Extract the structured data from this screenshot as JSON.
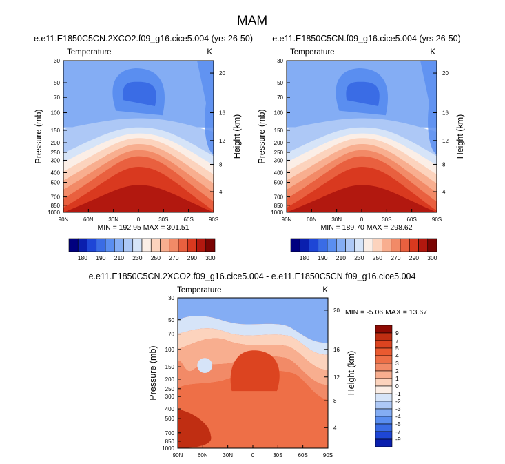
{
  "title": "MAM",
  "colors": {
    "abs_scale": [
      "#00007f",
      "#0a1fae",
      "#1e46d6",
      "#3a6ce5",
      "#5a8ef0",
      "#84adf4",
      "#adc8f6",
      "#d6e4f8",
      "#fbeee6",
      "#fcd3bd",
      "#f8ae8f",
      "#f28a67",
      "#e9603f",
      "#d9391f",
      "#b2180f",
      "#7a0403"
    ],
    "diff_scale": [
      "#00007f",
      "#0a1fae",
      "#1e46d6",
      "#3a6ce5",
      "#5a8ef0",
      "#84adf4",
      "#adc8f6",
      "#d6e4f8",
      "#fbeee6",
      "#fcd3bd",
      "#f8ae8f",
      "#f28a67",
      "#ee6f47",
      "#ea5a30",
      "#dc4420",
      "#c02e12",
      "#8e0a03"
    ]
  },
  "chart_data": [
    {
      "id": "left",
      "type": "heatmap",
      "title": "e.e11.E1850C5CN.2XCO2.f09_g16.cice5.004 (yrs 26-50)",
      "left_label": "Temperature",
      "right_label": "K",
      "ylabel": "Pressure (mb)",
      "ylabel_right": "Height (km)",
      "x_ticks": [
        "90N",
        "60N",
        "30N",
        "0",
        "30S",
        "60S",
        "90S"
      ],
      "y_ticks": [
        "30",
        "50",
        "70",
        "100",
        "150",
        "200",
        "250",
        "300",
        "400",
        "500",
        "700",
        "850",
        "1000"
      ],
      "height_ticks": [
        "20",
        "16",
        "12",
        "8",
        "4"
      ],
      "min_max_text": "MIN = 192.95   MAX = 301.51",
      "min": 192.95,
      "max": 301.51,
      "colorbar_ticks": [
        "180",
        "190",
        "210",
        "230",
        "250",
        "270",
        "290",
        "300"
      ]
    },
    {
      "id": "right",
      "type": "heatmap",
      "title": "e.e11.E1850C5CN.f09_g16.cice5.004 (yrs 26-50)",
      "left_label": "Temperature",
      "right_label": "K",
      "ylabel": "Pressure (mb)",
      "ylabel_right": "Height (km)",
      "x_ticks": [
        "90N",
        "60N",
        "30N",
        "0",
        "30S",
        "60S",
        "90S"
      ],
      "y_ticks": [
        "30",
        "50",
        "70",
        "100",
        "150",
        "200",
        "250",
        "300",
        "400",
        "500",
        "700",
        "850",
        "1000"
      ],
      "height_ticks": [
        "20",
        "16",
        "12",
        "8",
        "4"
      ],
      "min_max_text": "MIN = 189.70   MAX = 298.62",
      "min": 189.7,
      "max": 298.62,
      "colorbar_ticks": [
        "180",
        "190",
        "210",
        "230",
        "250",
        "270",
        "290",
        "300"
      ]
    },
    {
      "id": "diff",
      "type": "heatmap",
      "title": "e.e11.E1850C5CN.2XCO2.f09_g16.cice5.004 - e.e11.E1850C5CN.f09_g16.cice5.004",
      "left_label": "Temperature",
      "right_label": "K",
      "ylabel": "Pressure (mb)",
      "ylabel_right": "Height (km)",
      "x_ticks": [
        "90N",
        "60N",
        "30N",
        "0",
        "30S",
        "60S",
        "90S"
      ],
      "y_ticks": [
        "30",
        "50",
        "70",
        "100",
        "150",
        "200",
        "250",
        "300",
        "400",
        "500",
        "700",
        "850",
        "1000"
      ],
      "height_ticks": [
        "20",
        "16",
        "12",
        "8",
        "4"
      ],
      "min_max_text": "MIN =  -5.06   MAX =  13.67",
      "min": -5.06,
      "max": 13.67,
      "colorbar_ticks": [
        "9",
        "7",
        "5",
        "4",
        "3",
        "2",
        "1",
        "0",
        "-1",
        "-2",
        "-3",
        "-4",
        "-5",
        "-7",
        "-9"
      ]
    }
  ]
}
